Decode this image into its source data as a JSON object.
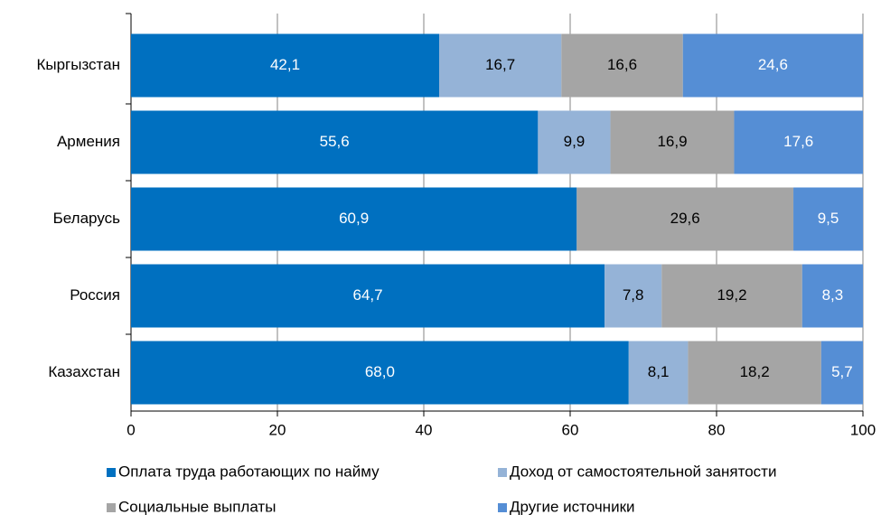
{
  "chart_data": {
    "type": "stacked_barh",
    "categories": [
      "Кыргызстан",
      "Армения",
      "Беларусь",
      "Россия",
      "Казахстан"
    ],
    "series": [
      {
        "name": "Оплата труда работающих по найму",
        "color": "#0070c0",
        "values": [
          42.1,
          55.6,
          60.9,
          64.7,
          68.0
        ],
        "value_labels": [
          "42,1",
          "55,6",
          "60,9",
          "64,7",
          "68,0"
        ]
      },
      {
        "name": "Доход от самостоятельной занятости",
        "color": "#95b3d7",
        "values": [
          16.7,
          9.9,
          null,
          7.8,
          8.1
        ],
        "value_labels": [
          "16,7",
          "9,9",
          null,
          "7,8",
          "8,1"
        ]
      },
      {
        "name": "Социальные выплаты",
        "color": "#a5a5a5",
        "values": [
          16.6,
          16.9,
          29.6,
          19.2,
          18.2
        ],
        "value_labels": [
          "16,6",
          "16,9",
          "29,6",
          "19,2",
          "18,2"
        ]
      },
      {
        "name": "Другие источники",
        "color": "#558ed5",
        "values": [
          24.6,
          17.6,
          9.5,
          8.3,
          5.7
        ],
        "value_labels": [
          "24,6",
          "17,6",
          "9,5",
          "8,3",
          "5,7"
        ]
      }
    ],
    "xlim": [
      0,
      100
    ],
    "xticks": [
      0,
      20,
      40,
      60,
      80,
      100
    ],
    "grid": true,
    "legend": "bottom"
  }
}
